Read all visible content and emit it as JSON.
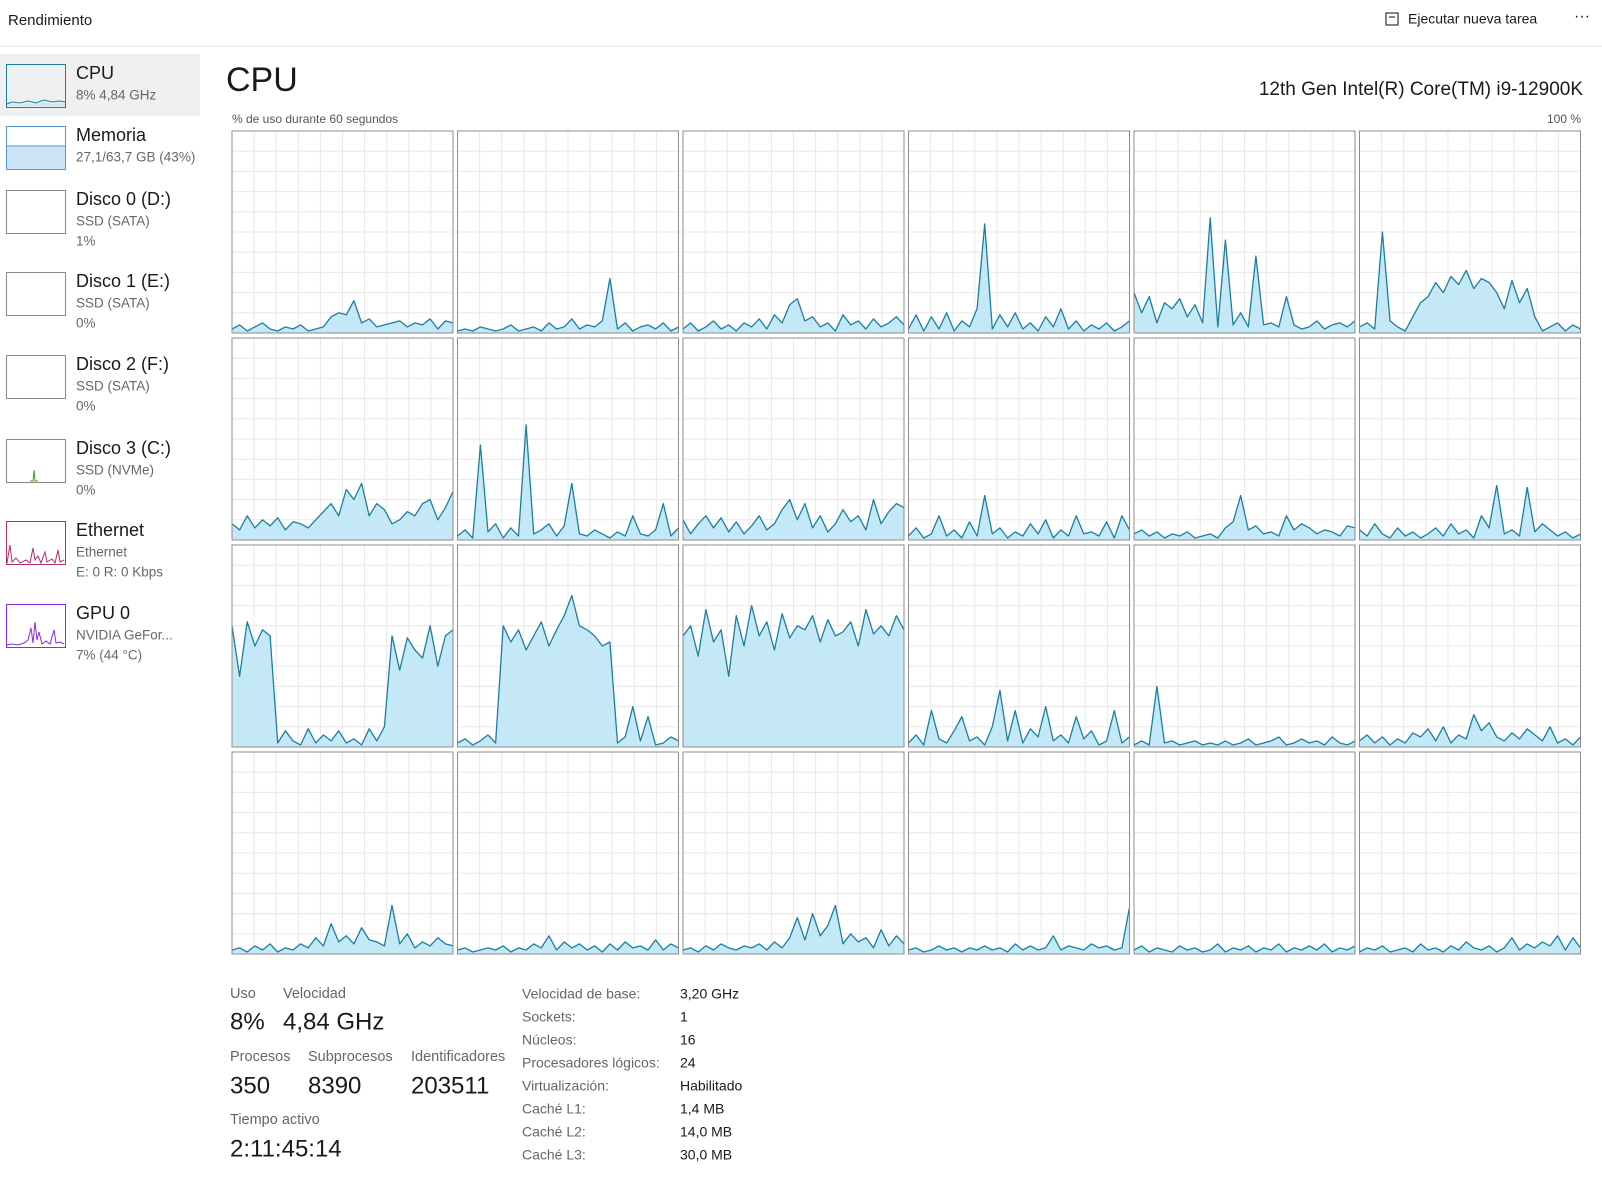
{
  "header": {
    "title": "Rendimiento",
    "run_task": "Ejecutar nueva tarea",
    "more": "···"
  },
  "sidebar": [
    {
      "name": "CPU",
      "line1": "8% 4,84 GHz"
    },
    {
      "name": "Memoria",
      "line1": "27,1/63,7 GB (43%)"
    },
    {
      "name": "Disco 0 (D:)",
      "line1": "SSD (SATA)",
      "line2": "1%"
    },
    {
      "name": "Disco 1 (E:)",
      "line1": "SSD (SATA)",
      "line2": "0%"
    },
    {
      "name": "Disco 2 (F:)",
      "line1": "SSD (SATA)",
      "line2": "0%"
    },
    {
      "name": "Disco 3 (C:)",
      "line1": "SSD (NVMe)",
      "line2": "0%"
    },
    {
      "name": "Ethernet",
      "line1": "Ethernet",
      "line2": "E: 0 R: 0 Kbps"
    },
    {
      "name": "GPU 0",
      "line1": "NVIDIA GeFor...",
      "line2": "7% (44 °C)"
    }
  ],
  "chart_data": {
    "type": "area",
    "title": "CPU",
    "subtitle": "12th Gen Intel(R) Core(TM) i9-12900K",
    "y_label": "% de uso durante 60 segundos",
    "ymax_label": "100 %",
    "color": "#1b7fa0",
    "fill_color": "#c4e8f5",
    "grid": true,
    "ylim": [
      0,
      100
    ],
    "yticks": [
      0,
      10,
      20,
      30,
      40,
      50,
      60,
      70,
      80,
      90,
      100
    ],
    "xlim": [
      0,
      60
    ],
    "xticks": [
      0,
      6,
      12,
      18,
      24,
      30,
      36,
      42,
      48,
      54,
      60
    ],
    "series": [
      {
        "values": [
          2,
          4,
          1,
          3,
          5,
          2,
          1,
          3,
          2,
          4,
          1,
          2,
          3,
          8,
          10,
          9,
          16,
          5,
          7,
          3,
          4,
          5,
          6,
          3,
          5,
          4,
          7,
          2,
          6,
          5
        ]
      },
      {
        "values": [
          1,
          2,
          1,
          3,
          2,
          1,
          2,
          4,
          1,
          2,
          3,
          1,
          5,
          2,
          3,
          7,
          2,
          4,
          3,
          6,
          27,
          2,
          5,
          1,
          3,
          4,
          2,
          5,
          1,
          3
        ]
      },
      {
        "values": [
          2,
          5,
          1,
          3,
          6,
          2,
          4,
          1,
          5,
          3,
          7,
          2,
          9,
          5,
          14,
          17,
          6,
          8,
          3,
          5,
          1,
          9,
          4,
          6,
          2,
          7,
          3,
          5,
          8,
          4
        ]
      },
      {
        "values": [
          2,
          9,
          1,
          8,
          2,
          10,
          1,
          6,
          3,
          12,
          54,
          2,
          9,
          3,
          10,
          2,
          5,
          1,
          8,
          3,
          12,
          2,
          6,
          1,
          4,
          2,
          5,
          1,
          3,
          6
        ]
      },
      {
        "values": [
          20,
          10,
          18,
          5,
          15,
          12,
          17,
          8,
          14,
          5,
          57,
          3,
          46,
          4,
          10,
          3,
          38,
          4,
          5,
          3,
          18,
          4,
          2,
          3,
          6,
          2,
          4,
          5,
          3,
          6
        ]
      },
      {
        "values": [
          3,
          5,
          2,
          50,
          6,
          3,
          1,
          8,
          15,
          18,
          25,
          20,
          28,
          24,
          31,
          22,
          27,
          25,
          20,
          12,
          26,
          15,
          22,
          8,
          1,
          3,
          5,
          1,
          4,
          2
        ]
      },
      {
        "values": [
          8,
          5,
          12,
          6,
          10,
          7,
          11,
          5,
          9,
          8,
          6,
          10,
          14,
          18,
          12,
          25,
          20,
          28,
          12,
          18,
          15,
          8,
          10,
          14,
          12,
          18,
          20,
          10,
          16,
          24
        ]
      },
      {
        "values": [
          2,
          5,
          1,
          47,
          4,
          8,
          1,
          6,
          2,
          57,
          3,
          5,
          8,
          2,
          7,
          28,
          3,
          2,
          5,
          3,
          1,
          4,
          2,
          12,
          3,
          2,
          5,
          18,
          2,
          6
        ]
      },
      {
        "values": [
          10,
          3,
          8,
          12,
          6,
          11,
          4,
          9,
          3,
          7,
          12,
          5,
          8,
          15,
          20,
          10,
          18,
          6,
          12,
          4,
          8,
          15,
          9,
          12,
          5,
          20,
          8,
          14,
          18,
          16
        ]
      },
      {
        "values": [
          2,
          6,
          1,
          3,
          12,
          2,
          5,
          1,
          9,
          2,
          22,
          3,
          6,
          1,
          4,
          2,
          8,
          3,
          10,
          1,
          5,
          2,
          12,
          3,
          4,
          2,
          9,
          1,
          12,
          5
        ]
      },
      {
        "values": [
          3,
          5,
          2,
          4,
          1,
          3,
          2,
          4,
          1,
          2,
          3,
          1,
          6,
          9,
          22,
          5,
          7,
          3,
          4,
          2,
          12,
          5,
          8,
          6,
          3,
          5,
          4,
          2,
          7,
          6
        ]
      },
      {
        "values": [
          5,
          2,
          8,
          3,
          1,
          6,
          2,
          4,
          1,
          3,
          6,
          2,
          8,
          3,
          5,
          1,
          12,
          6,
          27,
          3,
          5,
          2,
          26,
          4,
          8,
          5,
          2,
          4,
          1,
          3
        ]
      },
      {
        "values": [
          60,
          35,
          62,
          50,
          58,
          55,
          2,
          8,
          3,
          1,
          9,
          2,
          6,
          3,
          8,
          2,
          4,
          1,
          9,
          3,
          10,
          55,
          38,
          54,
          48,
          44,
          60,
          40,
          55,
          58
        ]
      },
      {
        "values": [
          2,
          4,
          1,
          3,
          6,
          2,
          60,
          52,
          58,
          48,
          55,
          62,
          50,
          58,
          65,
          75,
          60,
          58,
          55,
          50,
          52,
          2,
          5,
          20,
          3,
          15,
          1,
          2,
          5,
          3
        ]
      },
      {
        "values": [
          55,
          60,
          45,
          68,
          52,
          58,
          35,
          65,
          50,
          70,
          55,
          62,
          48,
          66,
          54,
          60,
          58,
          65,
          52,
          63,
          55,
          57,
          62,
          50,
          68,
          56,
          60,
          55,
          65,
          58
        ]
      },
      {
        "values": [
          2,
          6,
          1,
          18,
          4,
          2,
          8,
          15,
          3,
          5,
          1,
          10,
          28,
          3,
          18,
          2,
          9,
          5,
          20,
          3,
          6,
          2,
          15,
          4,
          8,
          1,
          3,
          18,
          2,
          5
        ]
      },
      {
        "values": [
          1,
          3,
          1,
          30,
          2,
          3,
          1,
          2,
          3,
          1,
          2,
          1,
          3,
          1,
          2,
          4,
          1,
          2,
          3,
          5,
          1,
          2,
          4,
          2,
          3,
          1,
          5,
          2,
          1,
          3
        ]
      },
      {
        "values": [
          3,
          6,
          2,
          5,
          1,
          4,
          2,
          7,
          5,
          9,
          3,
          10,
          2,
          6,
          4,
          16,
          8,
          12,
          5,
          3,
          7,
          4,
          9,
          6,
          3,
          10,
          2,
          4,
          1,
          5
        ]
      },
      {
        "values": [
          2,
          3,
          1,
          4,
          2,
          5,
          1,
          3,
          2,
          5,
          3,
          8,
          4,
          15,
          6,
          9,
          5,
          13,
          7,
          6,
          4,
          24,
          5,
          10,
          3,
          6,
          4,
          8,
          5,
          4
        ]
      },
      {
        "values": [
          2,
          3,
          1,
          2,
          3,
          2,
          4,
          1,
          3,
          2,
          5,
          3,
          9,
          2,
          6,
          3,
          5,
          2,
          4,
          1,
          5,
          2,
          6,
          3,
          4,
          2,
          7,
          2,
          5,
          3
        ]
      },
      {
        "values": [
          2,
          3,
          1,
          4,
          2,
          5,
          3,
          2,
          4,
          3,
          5,
          2,
          6,
          3,
          8,
          18,
          7,
          20,
          9,
          14,
          24,
          5,
          10,
          6,
          8,
          3,
          12,
          4,
          9,
          5
        ]
      },
      {
        "values": [
          2,
          3,
          1,
          2,
          4,
          2,
          3,
          1,
          3,
          2,
          4,
          2,
          3,
          1,
          5,
          2,
          4,
          2,
          3,
          9,
          2,
          4,
          3,
          2,
          5,
          3,
          4,
          2,
          3,
          23
        ]
      },
      {
        "values": [
          2,
          4,
          1,
          3,
          2,
          1,
          4,
          2,
          3,
          1,
          2,
          5,
          1,
          3,
          2,
          4,
          1,
          3,
          2,
          5,
          1,
          3,
          2,
          4,
          2,
          5,
          1,
          3,
          2,
          4
        ]
      },
      {
        "values": [
          1,
          3,
          2,
          4,
          1,
          2,
          3,
          1,
          5,
          2,
          3,
          1,
          4,
          2,
          6,
          3,
          2,
          4,
          1,
          3,
          8,
          2,
          5,
          3,
          6,
          4,
          9,
          2,
          8,
          3
        ]
      }
    ]
  },
  "stats": {
    "primary": [
      {
        "label": "Uso",
        "value": "8%"
      },
      {
        "label": "Velocidad",
        "value": "4,84 GHz"
      }
    ],
    "counts": [
      {
        "label": "Procesos",
        "value": 350
      },
      {
        "label": "Subprocesos",
        "value": 8390
      },
      {
        "label": "Identificadores",
        "value": 203511
      }
    ],
    "uptime": {
      "label": "Tiempo activo",
      "value": "2:11:45:14"
    },
    "details": [
      [
        "Velocidad de base:",
        "3,20 GHz"
      ],
      [
        "Sockets:",
        1
      ],
      [
        "Núcleos:",
        16
      ],
      [
        "Procesadores lógicos:",
        24
      ],
      [
        "Virtualización:",
        "Habilitado"
      ],
      [
        "Caché L1:",
        "1,4 MB"
      ],
      [
        "Caché L2:",
        "14,0 MB"
      ],
      [
        "Caché L3:",
        "30,0 MB"
      ]
    ]
  }
}
